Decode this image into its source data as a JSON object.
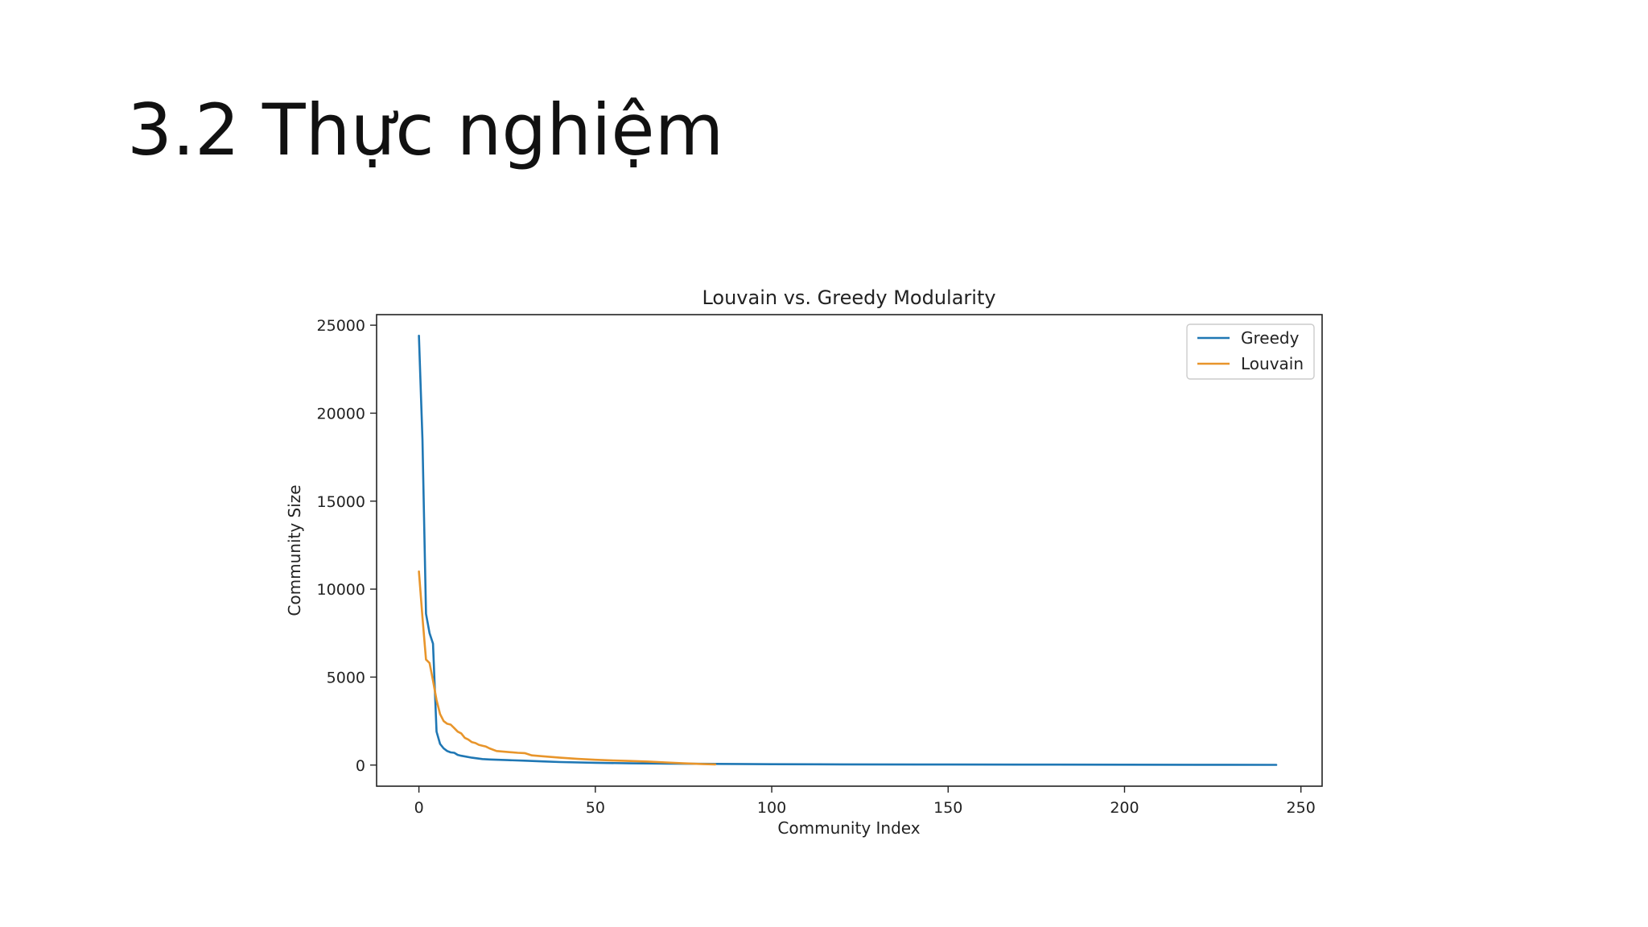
{
  "slide": {
    "title": "3.2 Thực nghiệm"
  },
  "chart_data": {
    "type": "line",
    "title": "Louvain vs. Greedy Modularity",
    "xlabel": "Community Index",
    "ylabel": "Community Size",
    "xlim": [
      -12,
      256
    ],
    "ylim": [
      -1200,
      25600
    ],
    "xticks": [
      0,
      50,
      100,
      150,
      200,
      250
    ],
    "yticks": [
      0,
      5000,
      10000,
      15000,
      20000,
      25000
    ],
    "grid": false,
    "legend": "top-right",
    "series": [
      {
        "name": "Greedy",
        "color": "#1f77b4",
        "x": [
          0,
          1,
          2,
          3,
          4,
          5,
          6,
          7,
          8,
          9,
          10,
          11,
          12,
          15,
          18,
          20,
          25,
          30,
          35,
          40,
          50,
          60,
          70,
          80,
          90,
          100,
          120,
          150,
          180,
          200,
          220,
          243
        ],
        "y": [
          24400,
          18500,
          8600,
          7500,
          6900,
          1900,
          1200,
          950,
          800,
          720,
          700,
          580,
          530,
          420,
          340,
          320,
          280,
          250,
          210,
          170,
          130,
          100,
          80,
          70,
          60,
          50,
          40,
          30,
          25,
          20,
          15,
          10
        ]
      },
      {
        "name": "Louvain",
        "color": "#e8952b",
        "x": [
          0,
          1,
          2,
          3,
          4,
          5,
          6,
          7,
          8,
          9,
          10,
          11,
          12,
          13,
          14,
          15,
          16,
          17,
          18,
          19,
          20,
          22,
          25,
          28,
          30,
          32,
          35,
          40,
          45,
          50,
          55,
          60,
          65,
          70,
          75,
          80,
          84
        ],
        "y": [
          11000,
          8400,
          6000,
          5800,
          4800,
          3700,
          2900,
          2500,
          2350,
          2300,
          2100,
          1900,
          1800,
          1550,
          1450,
          1300,
          1250,
          1150,
          1100,
          1050,
          950,
          800,
          750,
          700,
          680,
          550,
          500,
          420,
          350,
          300,
          260,
          230,
          200,
          150,
          100,
          60,
          40
        ]
      }
    ]
  }
}
